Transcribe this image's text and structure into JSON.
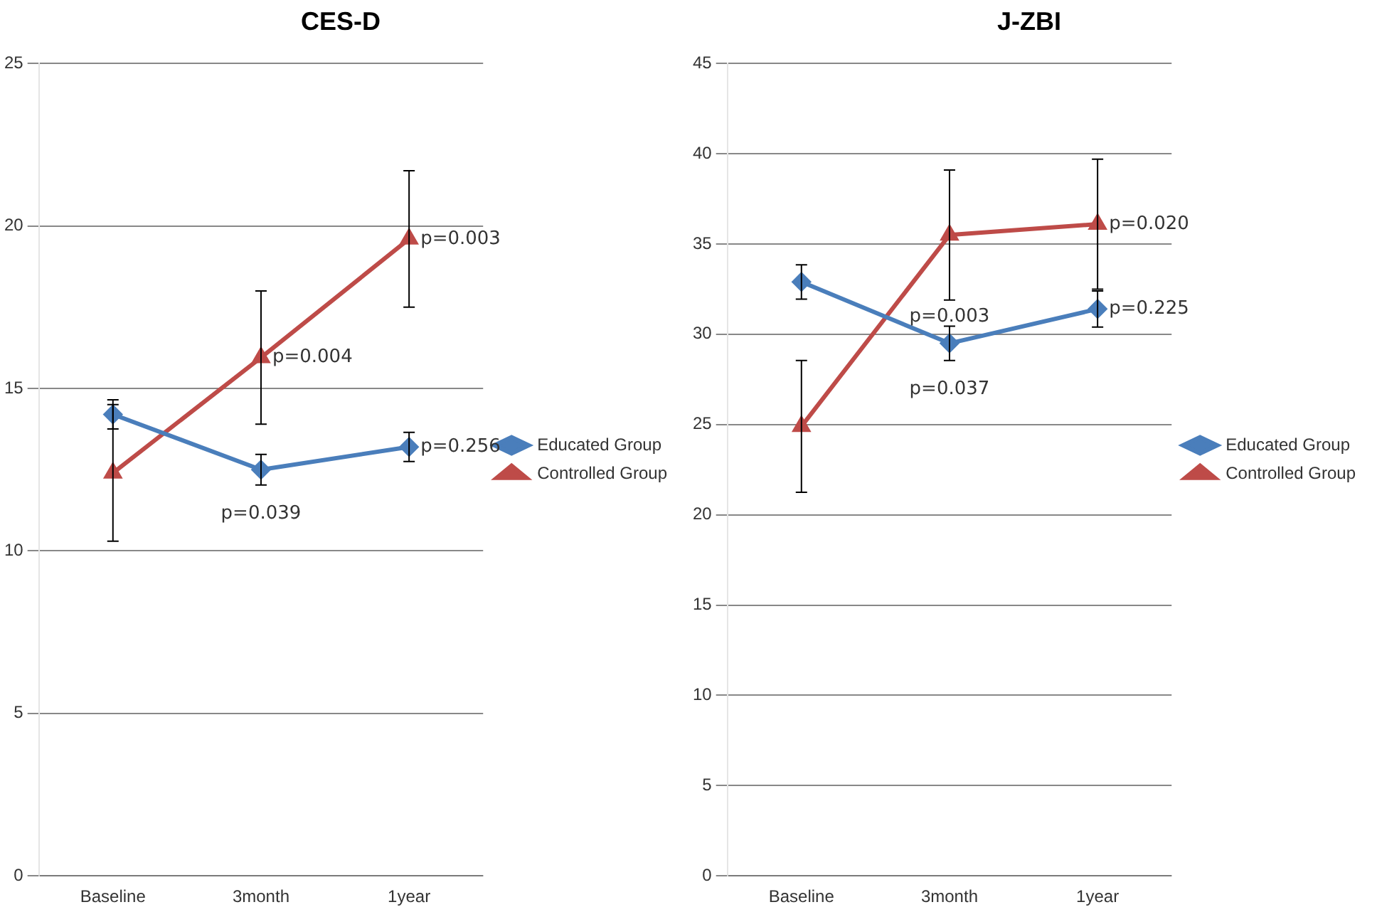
{
  "chart_data": [
    {
      "type": "line",
      "title": "CES-D",
      "categories": [
        "Baseline",
        "3month",
        "1year"
      ],
      "ylim": [
        0,
        25
      ],
      "yticks": [
        0,
        5,
        10,
        15,
        20,
        25
      ],
      "grid": "y",
      "legend": "right",
      "line_style": "solid",
      "series": [
        {
          "name": "Educated Group",
          "color": "#4a7ebb",
          "marker": "diamond",
          "values": [
            14.2,
            12.5,
            13.2
          ],
          "errors": [
            0.45,
            0.47,
            0.45
          ]
        },
        {
          "name": "Controlled Group",
          "color": "#be4b48",
          "marker": "triangle",
          "values": [
            12.4,
            15.95,
            19.6
          ],
          "errors": [
            2.1,
            2.05,
            2.1
          ]
        }
      ],
      "annotations": [
        {
          "text": "p=0.003",
          "x": "1year",
          "y": 19.6
        },
        {
          "text": "p=0.004",
          "x": "3month",
          "y": 15.95
        },
        {
          "text": "p=0.256",
          "x": "1year",
          "y": 13.2
        },
        {
          "text": "p=0.039",
          "x": "3month",
          "y": 12.03
        }
      ]
    },
    {
      "type": "line",
      "title": "J-ZBI",
      "categories": [
        "Baseline",
        "3month",
        "1year"
      ],
      "ylim": [
        0,
        45
      ],
      "yticks": [
        0,
        5,
        10,
        15,
        20,
        25,
        30,
        35,
        40,
        45
      ],
      "grid": "y",
      "legend": "right",
      "line_style": "solid",
      "series": [
        {
          "name": "Educated Group",
          "color": "#4a7ebb",
          "marker": "diamond",
          "values": [
            32.9,
            29.5,
            31.4
          ],
          "errors": [
            0.95,
            0.95,
            1.0
          ]
        },
        {
          "name": "Controlled Group",
          "color": "#be4b48",
          "marker": "triangle",
          "values": [
            24.9,
            35.5,
            36.1
          ],
          "errors": [
            3.65,
            3.6,
            3.6
          ]
        }
      ],
      "annotations": [
        {
          "text": "p=0.020",
          "x": "1year",
          "y": 36.1
        },
        {
          "text": "p=0.003",
          "x": "3month",
          "y": 32.6
        },
        {
          "text": "p=0.037",
          "x": "3month",
          "y": 28.55
        },
        {
          "text": "p=0.225",
          "x": "1year",
          "y": 31.4
        }
      ]
    }
  ]
}
